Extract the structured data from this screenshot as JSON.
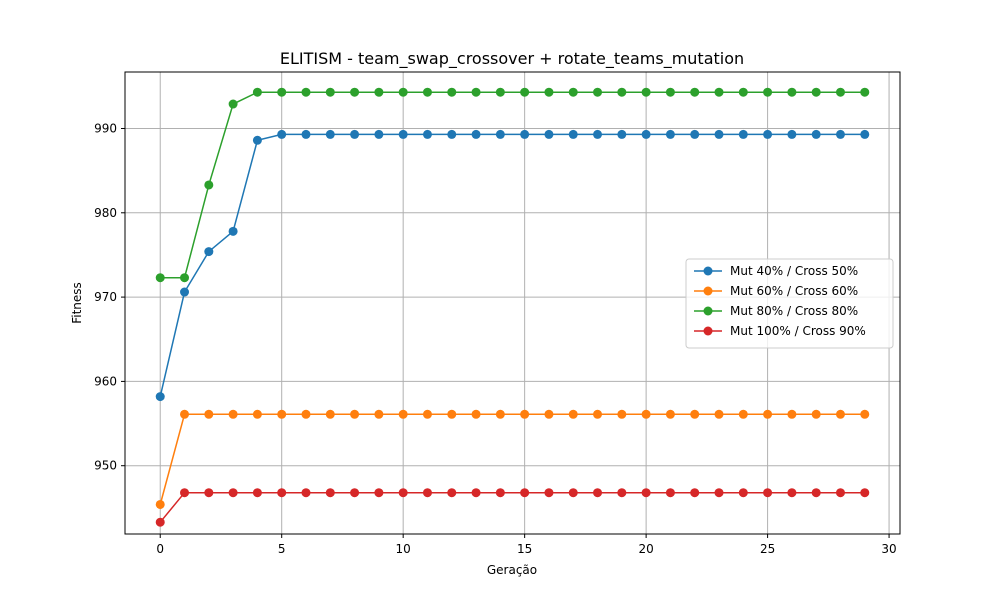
{
  "chart_data": {
    "type": "line",
    "title": "ELITISM - team_swap_crossover + rotate_teams_mutation",
    "xlabel": "Geração",
    "ylabel": "Fitness",
    "xlim": [
      -1.45,
      30.45
    ],
    "ylim": [
      941.9,
      996.7
    ],
    "xticks": [
      0,
      5,
      10,
      15,
      20,
      25,
      30
    ],
    "yticks": [
      950,
      960,
      970,
      980,
      990
    ],
    "grid": true,
    "legend_position": "center-right",
    "x": [
      0,
      1,
      2,
      3,
      4,
      5,
      6,
      7,
      8,
      9,
      10,
      11,
      12,
      13,
      14,
      15,
      16,
      17,
      18,
      19,
      20,
      21,
      22,
      23,
      24,
      25,
      26,
      27,
      28,
      29
    ],
    "series": [
      {
        "name": "Mut 40% / Cross 50%",
        "color": "#1f77b4",
        "values": [
          958.2,
          970.6,
          975.4,
          977.8,
          988.6,
          989.3,
          989.3,
          989.3,
          989.3,
          989.3,
          989.3,
          989.3,
          989.3,
          989.3,
          989.3,
          989.3,
          989.3,
          989.3,
          989.3,
          989.3,
          989.3,
          989.3,
          989.3,
          989.3,
          989.3,
          989.3,
          989.3,
          989.3,
          989.3,
          989.3
        ]
      },
      {
        "name": "Mut 60% / Cross 60%",
        "color": "#ff7f0e",
        "values": [
          945.4,
          956.1,
          956.1,
          956.1,
          956.1,
          956.1,
          956.1,
          956.1,
          956.1,
          956.1,
          956.1,
          956.1,
          956.1,
          956.1,
          956.1,
          956.1,
          956.1,
          956.1,
          956.1,
          956.1,
          956.1,
          956.1,
          956.1,
          956.1,
          956.1,
          956.1,
          956.1,
          956.1,
          956.1,
          956.1
        ]
      },
      {
        "name": "Mut 80% / Cross 80%",
        "color": "#2ca02c",
        "values": [
          972.3,
          972.3,
          983.3,
          992.9,
          994.3,
          994.3,
          994.3,
          994.3,
          994.3,
          994.3,
          994.3,
          994.3,
          994.3,
          994.3,
          994.3,
          994.3,
          994.3,
          994.3,
          994.3,
          994.3,
          994.3,
          994.3,
          994.3,
          994.3,
          994.3,
          994.3,
          994.3,
          994.3,
          994.3,
          994.3
        ]
      },
      {
        "name": "Mut 100% / Cross 90%",
        "color": "#d62728",
        "values": [
          943.3,
          946.8,
          946.8,
          946.8,
          946.8,
          946.8,
          946.8,
          946.8,
          946.8,
          946.8,
          946.8,
          946.8,
          946.8,
          946.8,
          946.8,
          946.8,
          946.8,
          946.8,
          946.8,
          946.8,
          946.8,
          946.8,
          946.8,
          946.8,
          946.8,
          946.8,
          946.8,
          946.8,
          946.8,
          946.8
        ]
      }
    ]
  }
}
